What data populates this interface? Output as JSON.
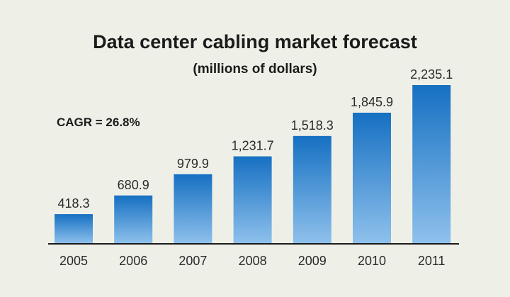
{
  "chart_data": {
    "type": "bar",
    "title": "Data center cabling market forecast",
    "subtitle": "(millions of dollars)",
    "annotation": "CAGR = 26.8%",
    "categories": [
      "2005",
      "2006",
      "2007",
      "2008",
      "2009",
      "2010",
      "2011"
    ],
    "values": [
      418.3,
      680.9,
      979.9,
      1231.7,
      1518.3,
      1845.9,
      2235.1
    ],
    "value_labels": [
      "418.3",
      "680.9",
      "979.9",
      "1,231.7",
      "1,518.3",
      "1,845.9",
      "2,235.1"
    ],
    "xlabel": "",
    "ylabel": "",
    "grid": false,
    "legend": "none",
    "colors": {
      "bar_top": "#1670c2",
      "bar_bottom": "#8fc1ec",
      "axis": "#1b1b1b",
      "background": "#eef0e8"
    }
  }
}
